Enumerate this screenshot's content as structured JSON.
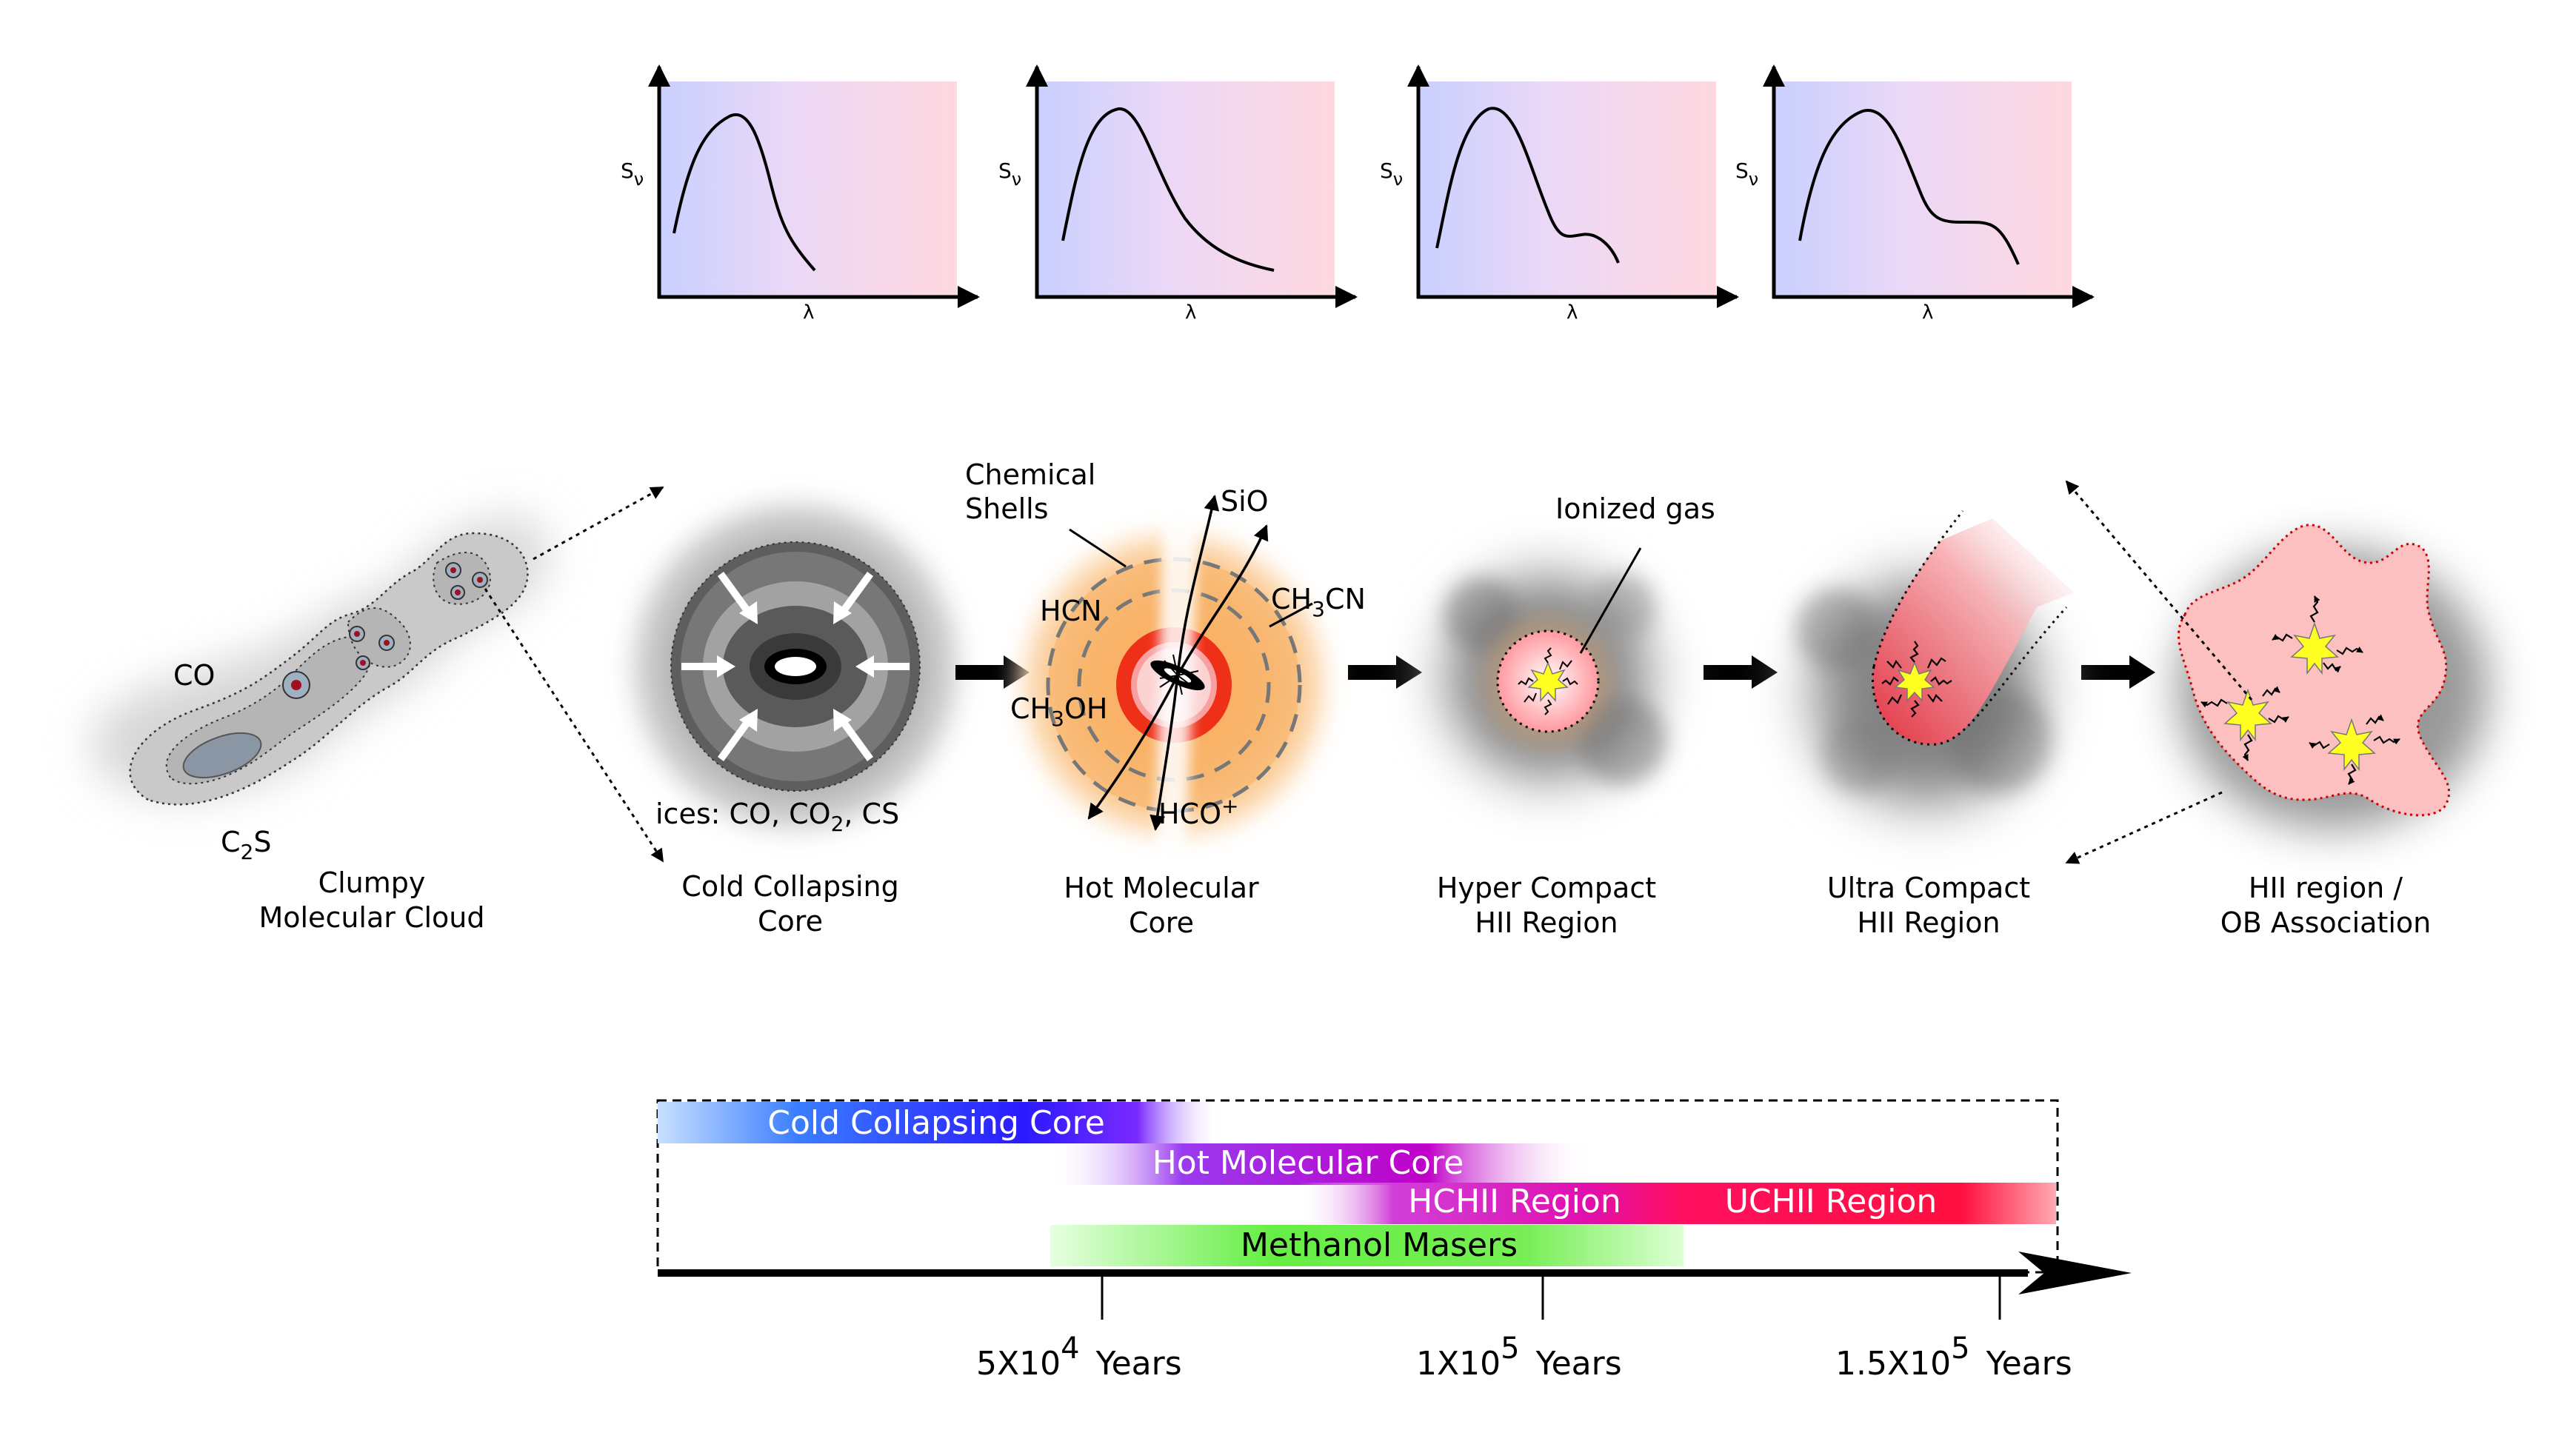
{
  "spectra": {
    "y_label": "S",
    "y_sub": "ν",
    "x_label": "λ"
  },
  "stages": [
    {
      "id": "clumpy",
      "line1": "Clumpy",
      "line2": "Molecular Cloud"
    },
    {
      "id": "cold",
      "line1": "Cold Collapsing",
      "line2": "Core"
    },
    {
      "id": "hot",
      "line1": "Hot Molecular",
      "line2": "Core"
    },
    {
      "id": "hchii",
      "line1": "Hyper Compact",
      "line2": "HII Region"
    },
    {
      "id": "uchii",
      "line1": "Ultra Compact",
      "line2": "HII Region"
    },
    {
      "id": "hii",
      "line1": "HII region /",
      "line2": "OB Association"
    }
  ],
  "annotations": {
    "co": "CO",
    "c2s_c": "C",
    "c2s_sub": "2",
    "c2s_s": "S",
    "ices_a": "ices: CO, CO",
    "ices_sub": "2",
    "ices_b": ", CS",
    "chemical_shells_1": "Chemical",
    "chemical_shells_2": "Shells",
    "sio": "SiO",
    "hcn": "HCN",
    "ch3cn_a": "CH",
    "ch3cn_sub": "3",
    "ch3cn_b": "CN",
    "ch3oh_a": "CH",
    "ch3oh_sub": "3",
    "ch3oh_b": "OH",
    "hco_a": "HCO",
    "hco_sup": "+",
    "ionized_gas": "Ionized gas"
  },
  "timeline": {
    "bars": [
      {
        "label": "Cold Collapsing Core"
      },
      {
        "label": "Hot Molecular Core"
      },
      {
        "label": "HCHII Region"
      },
      {
        "label": "UCHII Region"
      },
      {
        "label": "Methanol Masers"
      }
    ],
    "ticks": [
      {
        "mant": "5X10",
        "exp": "4",
        "unit": "Years"
      },
      {
        "mant": "1X10",
        "exp": "5",
        "unit": "Years"
      },
      {
        "mant": "1.5X10",
        "exp": "5",
        "unit": "Years"
      }
    ]
  },
  "colors": {
    "cold_core_bar": "#2a2aff",
    "hot_core_bar": "#b000c8",
    "hchii_bar": "#d010d0",
    "uchii_bar": "#ff1060",
    "maser_bar": "#66ee44",
    "hot_core_orange": "#f7a24a",
    "hot_core_red": "#e02a10",
    "star_yellow": "#ffff22"
  }
}
